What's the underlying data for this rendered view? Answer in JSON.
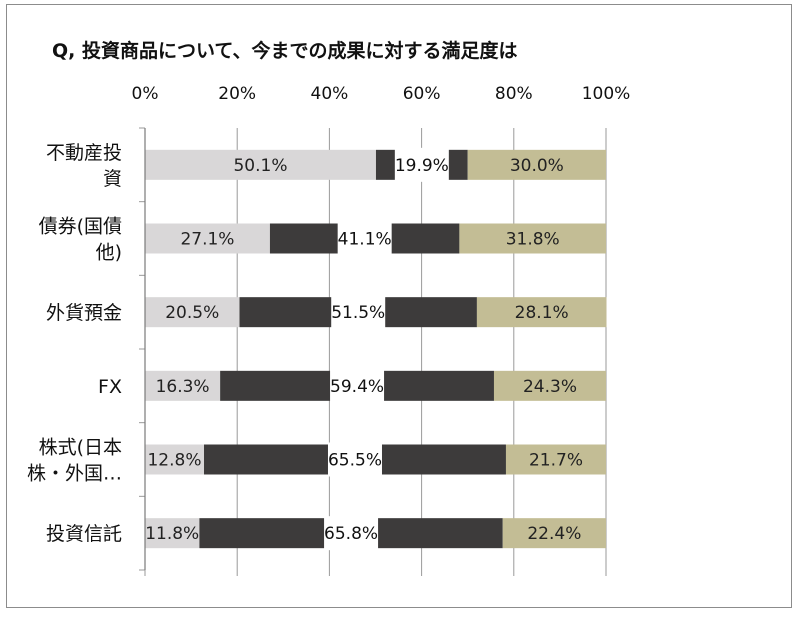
{
  "chart_data": {
    "type": "bar",
    "stacked": true,
    "orientation": "horizontal",
    "title": "Q, 投資商品について、今までの成果に対する満足度は",
    "xlim": [
      0,
      100
    ],
    "x_ticks": [
      "0%",
      "20%",
      "40%",
      "60%",
      "80%",
      "100%"
    ],
    "categories": [
      [
        "不動産投",
        "資"
      ],
      [
        "債券(国債",
        "他)"
      ],
      [
        "外貨預金"
      ],
      [
        "FX"
      ],
      [
        "株式(日本",
        "株・外国…"
      ],
      [
        "投資信託"
      ]
    ],
    "series": [
      {
        "color": "#d9d7d8",
        "label_color": "#222222",
        "values": [
          50.1,
          27.1,
          20.5,
          16.3,
          12.8,
          11.8
        ],
        "labels": [
          "50.1%",
          "27.1%",
          "20.5%",
          "16.3%",
          "12.8%",
          "11.8%"
        ]
      },
      {
        "color": "#3d3b3b",
        "label_color": "#111111",
        "values": [
          19.9,
          41.1,
          51.5,
          59.4,
          65.5,
          65.8
        ],
        "labels": [
          "19.9%",
          "41.1%",
          "51.5%",
          "59.4%",
          "65.5%",
          "65.8%"
        ]
      },
      {
        "color": "#c3bd95",
        "label_color": "#222222",
        "values": [
          30.0,
          31.8,
          28.1,
          24.3,
          21.7,
          22.4
        ],
        "labels": [
          "30.0%",
          "31.8%",
          "28.1%",
          "24.3%",
          "21.7%",
          "22.4%"
        ]
      }
    ],
    "grid": true,
    "legend": "none"
  }
}
